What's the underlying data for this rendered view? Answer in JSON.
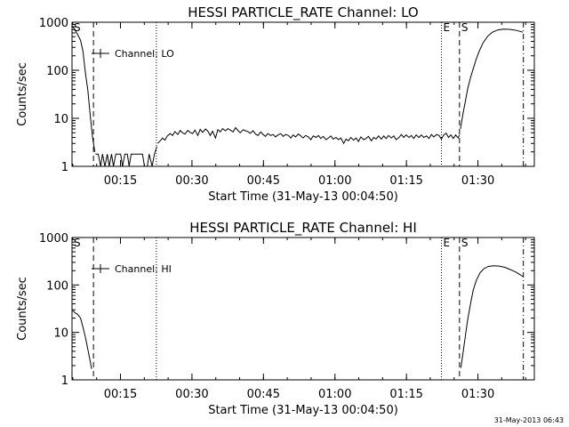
{
  "footer": {
    "timestamp": "31-May-2013 06:43"
  },
  "chart_data": [
    {
      "type": "line",
      "title": "HESSI PARTICLE_RATE Channel: LO",
      "xlabel": "Start Time (31-May-13 00:04:50)",
      "ylabel": "Counts/sec",
      "x_unit": "minutes after 00:04:50",
      "xlim": [
        0,
        97
      ],
      "ylim": [
        1,
        1000
      ],
      "y_scale": "log",
      "x_ticks": [
        "00:15",
        "00:30",
        "00:45",
        "01:00",
        "01:15",
        "01:30"
      ],
      "y_ticks": [
        "1",
        "10",
        "100",
        "1000"
      ],
      "legend": {
        "label": "Channel: LO",
        "position": "top-left"
      },
      "event_markers": [
        {
          "label": "S",
          "x": 0,
          "style": "dash-dot"
        },
        {
          "label": "",
          "x": 4.5,
          "style": "dashed"
        },
        {
          "label": "",
          "x": 17.7,
          "style": "dotted"
        },
        {
          "label": "E",
          "x": 77.5,
          "style": "dotted"
        },
        {
          "label": "S",
          "x": 81.3,
          "style": "dashed"
        },
        {
          "label": "",
          "x": 94.7,
          "style": "dash-dot"
        }
      ],
      "series": [
        {
          "segments": [
            [
              [
                0,
                850
              ],
              [
                0.6,
                700
              ],
              [
                1.2,
                550
              ],
              [
                1.8,
                420
              ],
              [
                2.3,
                250
              ],
              [
                2.8,
                90
              ],
              [
                3.3,
                40
              ],
              [
                3.8,
                12
              ],
              [
                4.3,
                4
              ],
              [
                4.8,
                2
              ]
            ],
            [
              [
                4.9,
                1.8
              ],
              [
                5.5,
                1.8
              ],
              [
                6.0,
                1
              ],
              [
                6.4,
                1.8
              ],
              [
                6.9,
                1
              ],
              [
                7.4,
                1.8
              ],
              [
                7.8,
                1
              ],
              [
                8.3,
                1.8
              ],
              [
                8.7,
                1
              ],
              [
                9.2,
                1.8
              ],
              [
                10.2,
                1.8
              ],
              [
                10.6,
                1
              ],
              [
                11.1,
                1.8
              ],
              [
                11.6,
                1.8
              ],
              [
                12.0,
                1
              ],
              [
                12.4,
                1.8
              ],
              [
                14.8,
                1.8
              ],
              [
                15.2,
                1
              ],
              [
                15.8,
                1
              ],
              [
                16.2,
                1.8
              ],
              [
                16.8,
                1
              ],
              [
                17.3,
                1.8
              ],
              [
                17.8,
                2.6
              ]
            ],
            [
              [
                18.0,
                3.0
              ],
              [
                18.5,
                3.4
              ],
              [
                19.0,
                3.9
              ],
              [
                19.5,
                3.5
              ],
              [
                20.0,
                4.3
              ],
              [
                20.6,
                4.8
              ],
              [
                21.1,
                4.4
              ],
              [
                21.6,
                5.3
              ],
              [
                22.2,
                4.6
              ],
              [
                22.7,
                5.6
              ],
              [
                23.2,
                5.0
              ],
              [
                23.7,
                4.7
              ],
              [
                24.3,
                5.6
              ],
              [
                24.8,
                5.1
              ],
              [
                25.3,
                4.8
              ],
              [
                25.8,
                5.7
              ],
              [
                26.4,
                4.4
              ],
              [
                26.9,
                5.9
              ],
              [
                27.4,
                5.1
              ],
              [
                28.0,
                6.0
              ],
              [
                28.5,
                5.4
              ],
              [
                29.0,
                4.4
              ],
              [
                29.5,
                5.4
              ],
              [
                30.1,
                3.9
              ],
              [
                30.6,
                5.8
              ],
              [
                31.1,
                5.2
              ],
              [
                31.6,
                6.1
              ],
              [
                32.2,
                5.5
              ],
              [
                32.7,
                6.1
              ],
              [
                33.2,
                5.7
              ],
              [
                33.8,
                5.2
              ],
              [
                34.3,
                6.4
              ],
              [
                34.8,
                5.6
              ],
              [
                35.3,
                5.0
              ],
              [
                35.9,
                5.8
              ],
              [
                36.4,
                5.5
              ],
              [
                36.9,
                5.3
              ],
              [
                37.4,
                4.9
              ],
              [
                38.0,
                5.5
              ],
              [
                38.5,
                4.7
              ],
              [
                39.0,
                4.4
              ],
              [
                39.6,
                5.2
              ],
              [
                40.1,
                4.6
              ],
              [
                40.6,
                4.2
              ],
              [
                41.1,
                4.8
              ],
              [
                41.7,
                4.4
              ],
              [
                42.2,
                4.6
              ],
              [
                42.7,
                4.1
              ],
              [
                43.2,
                4.5
              ],
              [
                43.8,
                4.8
              ],
              [
                44.3,
                4.2
              ],
              [
                44.8,
                4.6
              ],
              [
                45.4,
                4.4
              ],
              [
                45.9,
                3.9
              ],
              [
                46.4,
                4.5
              ],
              [
                46.9,
                4.1
              ],
              [
                47.5,
                4.7
              ],
              [
                48.0,
                4.3
              ],
              [
                48.5,
                3.9
              ],
              [
                49.0,
                4.4
              ],
              [
                49.6,
                4.1
              ],
              [
                50.1,
                3.6
              ],
              [
                50.6,
                4.3
              ],
              [
                51.2,
                4.0
              ],
              [
                51.7,
                4.4
              ],
              [
                52.2,
                3.8
              ],
              [
                52.7,
                4.2
              ],
              [
                53.3,
                3.6
              ],
              [
                53.8,
                3.9
              ],
              [
                54.3,
                4.3
              ],
              [
                54.8,
                3.7
              ],
              [
                55.4,
                4.0
              ],
              [
                55.9,
                3.6
              ],
              [
                56.4,
                3.9
              ],
              [
                57.0,
                3.0
              ],
              [
                57.5,
                3.7
              ],
              [
                58.0,
                3.4
              ],
              [
                58.5,
                4.0
              ],
              [
                59.1,
                3.5
              ],
              [
                59.6,
                3.9
              ],
              [
                60.1,
                3.3
              ],
              [
                60.6,
                4.1
              ],
              [
                61.2,
                3.6
              ],
              [
                61.7,
                3.8
              ],
              [
                62.2,
                4.2
              ],
              [
                62.8,
                3.4
              ],
              [
                63.3,
                4.0
              ],
              [
                63.8,
                3.7
              ],
              [
                64.3,
                4.3
              ],
              [
                64.9,
                3.7
              ],
              [
                65.4,
                4.3
              ],
              [
                65.9,
                3.8
              ],
              [
                66.4,
                4.4
              ],
              [
                67.0,
                3.9
              ],
              [
                67.5,
                4.3
              ],
              [
                68.0,
                3.6
              ],
              [
                68.6,
                4.0
              ],
              [
                69.1,
                4.6
              ],
              [
                69.6,
                4.0
              ],
              [
                70.1,
                4.5
              ],
              [
                70.7,
                4.0
              ],
              [
                71.2,
                4.4
              ],
              [
                71.7,
                3.8
              ],
              [
                72.2,
                4.5
              ],
              [
                72.8,
                4.0
              ],
              [
                73.3,
                4.5
              ],
              [
                73.8,
                4.0
              ],
              [
                74.4,
                4.3
              ],
              [
                74.9,
                3.8
              ],
              [
                75.4,
                4.6
              ],
              [
                75.9,
                4.1
              ],
              [
                76.5,
                4.6
              ],
              [
                77.0,
                4.4
              ],
              [
                77.5,
                3.7
              ],
              [
                78.0,
                4.5
              ],
              [
                78.5,
                4.9
              ],
              [
                79.0,
                4.0
              ],
              [
                79.5,
                4.5
              ],
              [
                80.0,
                3.8
              ],
              [
                80.5,
                4.5
              ],
              [
                81.0,
                3.9
              ],
              [
                81.3,
                4.5
              ]
            ],
            [
              [
                81.5,
                6
              ],
              [
                82.0,
                12
              ],
              [
                82.5,
                22
              ],
              [
                83.0,
                40
              ],
              [
                83.6,
                70
              ],
              [
                84.2,
                110
              ],
              [
                84.8,
                170
              ],
              [
                85.5,
                260
              ],
              [
                86.3,
                380
              ],
              [
                87.2,
                510
              ],
              [
                88.2,
                620
              ],
              [
                89.3,
                690
              ],
              [
                90.5,
                720
              ],
              [
                91.8,
                710
              ],
              [
                92.8,
                690
              ],
              [
                93.6,
                660
              ],
              [
                94.6,
                620
              ]
            ]
          ]
        }
      ]
    },
    {
      "type": "line",
      "title": "HESSI PARTICLE_RATE Channel: HI",
      "xlabel": "Start Time (31-May-13 00:04:50)",
      "ylabel": "Counts/sec",
      "x_unit": "minutes after 00:04:50",
      "xlim": [
        0,
        97
      ],
      "ylim": [
        1,
        1000
      ],
      "y_scale": "log",
      "x_ticks": [
        "00:15",
        "00:30",
        "00:45",
        "01:00",
        "01:15",
        "01:30"
      ],
      "y_ticks": [
        "1",
        "10",
        "100",
        "1000"
      ],
      "legend": {
        "label": "Channel: HI",
        "position": "top-left"
      },
      "event_markers": [
        {
          "label": "S",
          "x": 0,
          "style": "dash-dot"
        },
        {
          "label": "",
          "x": 4.5,
          "style": "dashed"
        },
        {
          "label": "",
          "x": 17.7,
          "style": "dotted"
        },
        {
          "label": "E",
          "x": 77.5,
          "style": "dotted"
        },
        {
          "label": "S",
          "x": 81.3,
          "style": "dashed"
        },
        {
          "label": "",
          "x": 94.7,
          "style": "dash-dot"
        }
      ],
      "series": [
        {
          "segments": [
            [
              [
                0,
                30
              ],
              [
                0.6,
                26
              ],
              [
                1.2,
                24
              ],
              [
                1.8,
                20
              ],
              [
                2.3,
                13
              ],
              [
                2.8,
                8
              ],
              [
                3.3,
                4.5
              ],
              [
                3.8,
                2.5
              ],
              [
                4.1,
                1.7
              ]
            ],
            [
              [
                81.6,
                1.8
              ],
              [
                82.0,
                3.5
              ],
              [
                82.5,
                8
              ],
              [
                83.0,
                18
              ],
              [
                83.6,
                40
              ],
              [
                84.2,
                80
              ],
              [
                84.9,
                130
              ],
              [
                85.6,
                180
              ],
              [
                86.4,
                220
              ],
              [
                87.3,
                245
              ],
              [
                88.4,
                255
              ],
              [
                89.6,
                250
              ],
              [
                90.8,
                235
              ],
              [
                92.0,
                210
              ],
              [
                93.2,
                185
              ],
              [
                94.2,
                160
              ],
              [
                94.6,
                150
              ]
            ]
          ]
        }
      ]
    }
  ]
}
